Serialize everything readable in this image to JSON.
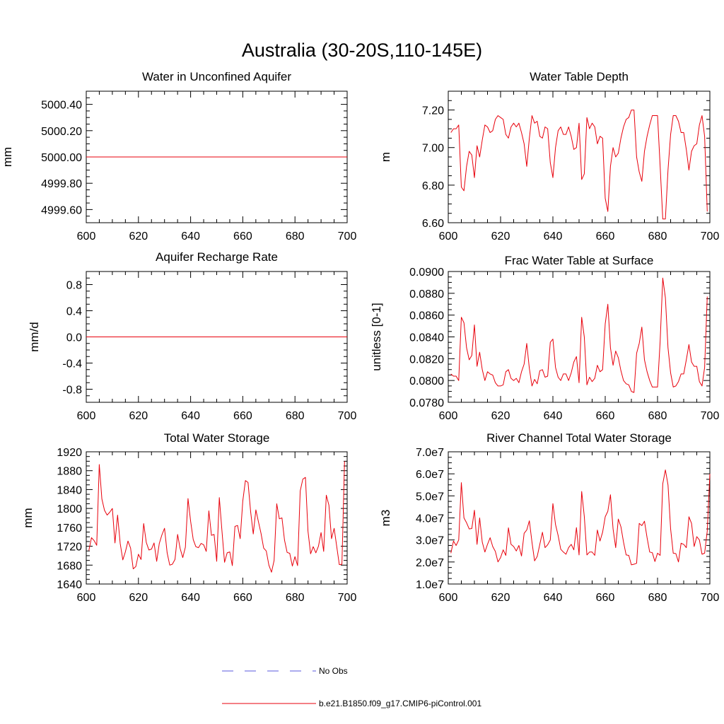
{
  "title": "Australia (30-20S,110-145E)",
  "chart_data": [
    {
      "type": "line",
      "title": "Water in Unconfined Aquifer",
      "ylabel": "mm",
      "xlim": [
        600,
        700
      ],
      "ylim": [
        4999.5,
        5000.5
      ],
      "xticks": [
        "600",
        "620",
        "640",
        "660",
        "680",
        "700"
      ],
      "yticks": [
        {
          "v": 4999.6,
          "label": "4999.60"
        },
        {
          "v": 4999.8,
          "label": "4999.80"
        },
        {
          "v": 5000.0,
          "label": "5000.00"
        },
        {
          "v": 5000.2,
          "label": "5000.20"
        },
        {
          "v": 5000.4,
          "label": "5000.40"
        }
      ],
      "series": [
        {
          "x0": 600,
          "dx": 1,
          "values": [
            5000,
            5000
          ]
        }
      ],
      "constant": true
    },
    {
      "type": "line",
      "title": "Water Table Depth",
      "ylabel": "m",
      "xlim": [
        600,
        700
      ],
      "ylim": [
        6.6,
        7.3
      ],
      "xticks": [
        "600",
        "620",
        "640",
        "660",
        "680",
        "700"
      ],
      "yticks": [
        {
          "v": 6.6,
          "label": "6.60"
        },
        {
          "v": 6.8,
          "label": "6.80"
        },
        {
          "v": 7.0,
          "label": "7.00"
        },
        {
          "v": 7.2,
          "label": "7.20"
        }
      ],
      "series": [
        {
          "x0": 601,
          "dx": 1,
          "values": [
            7.08,
            7.1,
            7.1,
            7.12,
            6.79,
            6.77,
            6.9,
            6.98,
            6.96,
            6.84,
            7.01,
            6.95,
            7.04,
            7.12,
            7.11,
            7.08,
            7.09,
            7.15,
            7.17,
            7.16,
            7.15,
            7.07,
            7.05,
            7.11,
            7.13,
            7.11,
            7.13,
            7.08,
            7.02,
            6.9,
            7.05,
            7.17,
            7.13,
            7.14,
            7.06,
            7.05,
            7.11,
            7.1,
            6.92,
            6.84,
            7.0,
            7.09,
            7.11,
            7.07,
            7.07,
            7.11,
            7.06,
            6.99,
            7.0,
            7.13,
            6.83,
            6.86,
            7.16,
            7.1,
            7.13,
            7.11,
            7.02,
            7.06,
            7.05,
            6.73,
            6.66,
            6.9,
            7.0,
            6.95,
            6.97,
            7.05,
            7.11,
            7.15,
            7.16,
            7.2,
            7.2,
            6.95,
            6.87,
            6.82,
            6.98,
            7.06,
            7.12,
            7.17,
            7.17,
            7.17,
            6.9,
            6.62,
            6.62,
            6.88,
            7.07,
            7.17,
            7.17,
            7.14,
            7.08,
            7.08,
            6.99,
            6.88,
            6.98,
            7.01,
            7.02,
            7.12,
            7.17,
            7.06,
            6.66
          ]
        }
      ]
    },
    {
      "type": "line",
      "title": "Aquifer Recharge Rate",
      "ylabel": "mm/d",
      "xlim": [
        600,
        700
      ],
      "ylim": [
        -1.0,
        1.0
      ],
      "xticks": [
        "600",
        "620",
        "640",
        "660",
        "680",
        "700"
      ],
      "yticks": [
        {
          "v": -0.8,
          "label": "-0.8"
        },
        {
          "v": -0.4,
          "label": "-0.4"
        },
        {
          "v": 0.0,
          "label": "0.0"
        },
        {
          "v": 0.4,
          "label": "0.4"
        },
        {
          "v": 0.8,
          "label": "0.8"
        }
      ],
      "series": [
        {
          "x0": 600,
          "dx": 1,
          "values": [
            0,
            0
          ]
        }
      ],
      "constant": true
    },
    {
      "type": "line",
      "title": "Frac Water Table at Surface",
      "ylabel": "unitless [0-1]",
      "xlim": [
        600,
        700
      ],
      "ylim": [
        0.078,
        0.09
      ],
      "xticks": [
        "600",
        "620",
        "640",
        "660",
        "680",
        "700"
      ],
      "yticks": [
        {
          "v": 0.078,
          "label": "0.0780"
        },
        {
          "v": 0.08,
          "label": "0.0800"
        },
        {
          "v": 0.082,
          "label": "0.0820"
        },
        {
          "v": 0.084,
          "label": "0.0840"
        },
        {
          "v": 0.086,
          "label": "0.0860"
        },
        {
          "v": 0.088,
          "label": "0.0880"
        },
        {
          "v": 0.09,
          "label": "0.0900"
        }
      ],
      "series": [
        {
          "x0": 601,
          "dx": 1,
          "values": [
            0.0806,
            0.0804,
            0.0804,
            0.08,
            0.0858,
            0.0853,
            0.083,
            0.0819,
            0.0823,
            0.0851,
            0.0813,
            0.0826,
            0.081,
            0.08,
            0.0808,
            0.0806,
            0.0805,
            0.0798,
            0.0795,
            0.0795,
            0.0796,
            0.0808,
            0.081,
            0.0802,
            0.08,
            0.0802,
            0.0798,
            0.0808,
            0.0815,
            0.0834,
            0.0811,
            0.0795,
            0.0801,
            0.0797,
            0.0809,
            0.081,
            0.0803,
            0.0804,
            0.0835,
            0.0838,
            0.0812,
            0.0803,
            0.08,
            0.0806,
            0.0806,
            0.08,
            0.0807,
            0.0817,
            0.0822,
            0.0798,
            0.0858,
            0.084,
            0.0796,
            0.0803,
            0.0799,
            0.0802,
            0.0814,
            0.0808,
            0.081,
            0.0852,
            0.087,
            0.083,
            0.0814,
            0.0827,
            0.0821,
            0.0809,
            0.08,
            0.0797,
            0.0796,
            0.079,
            0.0789,
            0.0825,
            0.0834,
            0.0849,
            0.0819,
            0.0808,
            0.08,
            0.0794,
            0.0794,
            0.0794,
            0.0836,
            0.0894,
            0.0876,
            0.083,
            0.0807,
            0.0794,
            0.0795,
            0.0799,
            0.0806,
            0.0806,
            0.0819,
            0.0833,
            0.0817,
            0.0813,
            0.0813,
            0.0799,
            0.0795,
            0.0812,
            0.0877
          ]
        }
      ]
    },
    {
      "type": "line",
      "title": "Total Water Storage",
      "ylabel": "mm",
      "xlim": [
        600,
        700
      ],
      "ylim": [
        1640,
        1920
      ],
      "xticks": [
        "600",
        "620",
        "640",
        "660",
        "680",
        "700"
      ],
      "yticks": [
        {
          "v": 1640,
          "label": "1640"
        },
        {
          "v": 1680,
          "label": "1680"
        },
        {
          "v": 1720,
          "label": "1720"
        },
        {
          "v": 1760,
          "label": "1760"
        },
        {
          "v": 1800,
          "label": "1800"
        },
        {
          "v": 1840,
          "label": "1840"
        },
        {
          "v": 1880,
          "label": "1880"
        },
        {
          "v": 1920,
          "label": "1920"
        }
      ],
      "series": [
        {
          "x0": 601,
          "dx": 1,
          "values": [
            1711,
            1738,
            1732,
            1722,
            1893,
            1820,
            1796,
            1786,
            1792,
            1800,
            1727,
            1786,
            1726,
            1691,
            1708,
            1731,
            1716,
            1672,
            1677,
            1703,
            1692,
            1768,
            1728,
            1712,
            1714,
            1727,
            1688,
            1726,
            1744,
            1758,
            1706,
            1680,
            1682,
            1692,
            1745,
            1715,
            1696,
            1718,
            1821,
            1773,
            1734,
            1719,
            1717,
            1726,
            1723,
            1709,
            1795,
            1743,
            1745,
            1688,
            1823,
            1753,
            1686,
            1706,
            1708,
            1679,
            1762,
            1764,
            1736,
            1816,
            1859,
            1855,
            1793,
            1746,
            1797,
            1772,
            1747,
            1716,
            1710,
            1680,
            1665,
            1690,
            1810,
            1778,
            1780,
            1733,
            1707,
            1705,
            1678,
            1698,
            1679,
            1837,
            1862,
            1866,
            1752,
            1704,
            1719,
            1706,
            1720,
            1749,
            1709,
            1828,
            1807,
            1736,
            1758,
            1720,
            1681,
            1682,
            1900
          ]
        }
      ]
    },
    {
      "type": "line",
      "title": "River Channel Total Water Storage",
      "ylabel": "m3",
      "xlim": [
        600,
        700
      ],
      "ylim": [
        10000000,
        70000000
      ],
      "xticks": [
        "600",
        "620",
        "640",
        "660",
        "680",
        "700"
      ],
      "yticks": [
        {
          "v": 10000000,
          "label": "1.0e7"
        },
        {
          "v": 20000000,
          "label": "2.0e7"
        },
        {
          "v": 30000000,
          "label": "3.0e7"
        },
        {
          "v": 40000000,
          "label": "4.0e7"
        },
        {
          "v": 50000000,
          "label": "5.0e7"
        },
        {
          "v": 60000000,
          "label": "6.0e7"
        },
        {
          "v": 70000000,
          "label": "7.0e7"
        }
      ],
      "series": [
        {
          "x0": 601,
          "dx": 1,
          "values": [
            24000000,
            29500000,
            27500000,
            30000000,
            56000000,
            40000000,
            37800000,
            35000000,
            35200000,
            43500000,
            28000000,
            40000000,
            29000000,
            24500000,
            28000000,
            31000000,
            27000000,
            24800000,
            20000000,
            22000000,
            25500000,
            23000000,
            35500000,
            28000000,
            27000000,
            25000000,
            27500000,
            22700000,
            33000000,
            34500000,
            38700000,
            29000000,
            20500000,
            22500000,
            28000000,
            33500000,
            26500000,
            27800000,
            30000000,
            46500000,
            37000000,
            32000000,
            25800000,
            24500000,
            23500000,
            26500000,
            28000000,
            25500000,
            35600000,
            23200000,
            52000000,
            40700000,
            23200000,
            24500000,
            24500000,
            23000000,
            34500000,
            29500000,
            33500000,
            40500000,
            43000000,
            50500000,
            35000000,
            26500000,
            39500000,
            36000000,
            29000000,
            23200000,
            23000000,
            18700000,
            19000000,
            19400000,
            37500000,
            36500000,
            38500000,
            31000000,
            24500000,
            24200000,
            20200000,
            24000000,
            23000000,
            55500000,
            61800000,
            55000000,
            35000000,
            24000000,
            23800000,
            20000000,
            28500000,
            28000000,
            26500000,
            40500000,
            37500000,
            27000000,
            31500000,
            30000000,
            23500000,
            24000000,
            34000000,
            60000000
          ]
        }
      ]
    }
  ],
  "legend": [
    {
      "label": "No Obs",
      "color": "#5a5adc",
      "style": "dashed"
    },
    {
      "label": "b.e21.B1850.f09_g17.CMIP6-piControl.001",
      "color": "#e8000b",
      "style": "solid"
    }
  ]
}
